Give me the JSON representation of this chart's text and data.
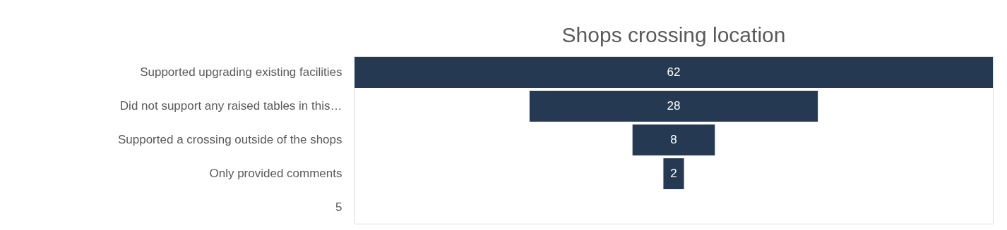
{
  "chart_data": {
    "type": "other",
    "title": "Shops crossing location",
    "categories": [
      "Supported upgrading existing facilities",
      "Did not support any raised tables in this…",
      "Supported a crossing outside of the shops",
      "Only provided comments",
      "5"
    ],
    "values": [
      62,
      28,
      8,
      2,
      null
    ],
    "color": "#253a52",
    "data_labels": true
  }
}
